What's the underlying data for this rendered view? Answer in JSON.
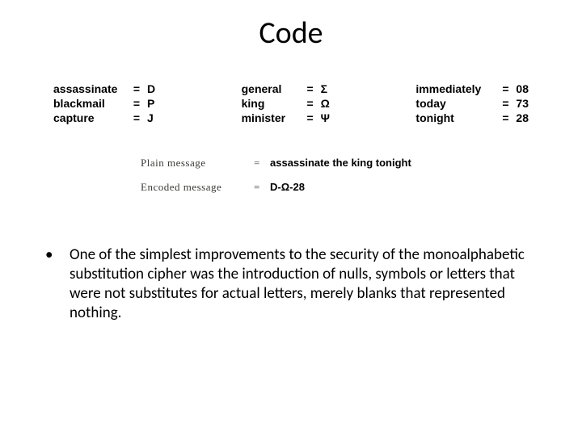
{
  "title": "Code",
  "codes": {
    "col1": [
      {
        "word": "assassinate",
        "eq": "=",
        "sym": "D"
      },
      {
        "word": "blackmail",
        "eq": "=",
        "sym": "P"
      },
      {
        "word": "capture",
        "eq": "=",
        "sym": "J"
      }
    ],
    "col2": [
      {
        "word": "general",
        "eq": "=",
        "sym": "Σ"
      },
      {
        "word": "king",
        "eq": "=",
        "sym": "Ω"
      },
      {
        "word": "minister",
        "eq": "=",
        "sym": "Ψ"
      }
    ],
    "col3": [
      {
        "word": "immediately",
        "eq": "=",
        "sym": "08"
      },
      {
        "word": "today",
        "eq": "=",
        "sym": "73"
      },
      {
        "word": "tonight",
        "eq": "=",
        "sym": "28"
      }
    ]
  },
  "messages": {
    "plain": {
      "label": "Plain message",
      "eq": "=",
      "value": "assassinate the king tonight"
    },
    "encoded": {
      "label": "Encoded message",
      "eq": "=",
      "value": "D-Ω-28"
    }
  },
  "bullet": {
    "marker": "•",
    "text": "One of the simplest improvements to the security of the monoalphabetic substitution cipher was the introduction of nulls, symbols or letters that were not substitutes for actual letters, merely blanks that represented nothing."
  },
  "colors": {
    "background": "#ffffff",
    "text": "#000000",
    "msg_label": "#3a3a38"
  }
}
